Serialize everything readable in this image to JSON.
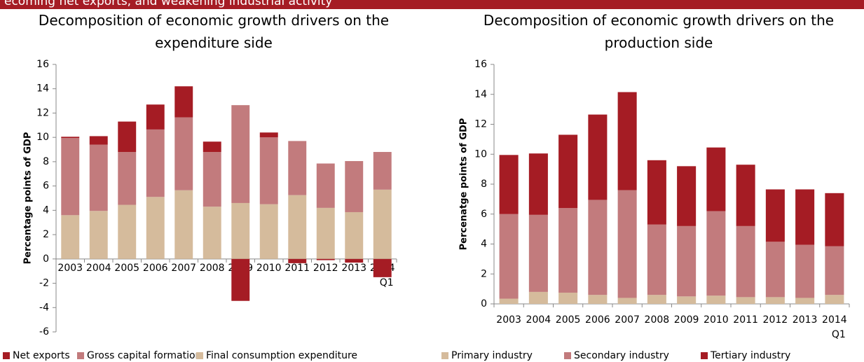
{
  "header": {
    "banner": "ecoming net exports, and weakening industrial activity"
  },
  "chart_data": [
    {
      "type": "bar",
      "title": "Decomposition of economic growth drivers on the expenditure side",
      "y_label": "Percentage points of GDP",
      "categories": [
        "2003",
        "2004",
        "2005",
        "2006",
        "2007",
        "2008",
        "2009",
        "2010",
        "2011",
        "2012",
        "2013",
        "2014 Q1"
      ],
      "series": [
        {
          "name": "Net exports",
          "color": "#a51c24",
          "values": [
            0.1,
            0.7,
            2.5,
            2.05,
            2.55,
            0.85,
            -3.45,
            0.4,
            -0.35,
            -0.1,
            -0.3,
            -1.5
          ]
        },
        {
          "name": "Gross capital formation",
          "color": "#c27b7d",
          "values": [
            6.35,
            5.45,
            4.35,
            5.55,
            6.0,
            4.5,
            8.05,
            5.5,
            4.45,
            3.65,
            4.2,
            3.1
          ]
        },
        {
          "name": "Final consumption expenditure",
          "color": "#d5bb9c",
          "values": [
            3.6,
            3.95,
            4.45,
            5.1,
            5.65,
            4.3,
            4.6,
            4.5,
            5.25,
            4.2,
            3.85,
            5.7
          ]
        }
      ],
      "ylim": [
        -6,
        16
      ],
      "yticks": [
        -6,
        -4,
        -2,
        0,
        2,
        4,
        6,
        8,
        10,
        12,
        14,
        16
      ],
      "stacked": true,
      "legend": "bottom"
    },
    {
      "type": "bar",
      "title": "Decomposition of economic growth drivers on the production side",
      "y_label": "Percenatge points of GDP",
      "categories": [
        "2003",
        "2004",
        "2005",
        "2006",
        "2007",
        "2008",
        "2009",
        "2010",
        "2011",
        "2012",
        "2013",
        "2014 Q1"
      ],
      "series": [
        {
          "name": "Primary industry",
          "color": "#d5bb9c",
          "values": [
            0.35,
            0.8,
            0.75,
            0.6,
            0.4,
            0.6,
            0.5,
            0.55,
            0.45,
            0.45,
            0.4,
            0.6
          ]
        },
        {
          "name": "Secondary industry",
          "color": "#c27b7d",
          "values": [
            5.65,
            5.15,
            5.65,
            6.35,
            7.2,
            4.7,
            4.7,
            5.65,
            4.75,
            3.7,
            3.55,
            3.25
          ]
        },
        {
          "name": "Tertiary industry",
          "color": "#a51c24",
          "values": [
            3.95,
            4.1,
            4.9,
            5.7,
            6.55,
            4.3,
            4.0,
            4.25,
            4.1,
            3.5,
            3.7,
            3.55
          ]
        }
      ],
      "ylim": [
        0,
        16
      ],
      "yticks": [
        0,
        2,
        4,
        6,
        8,
        10,
        12,
        14,
        16
      ],
      "stacked": true,
      "legend": "bottom"
    }
  ]
}
